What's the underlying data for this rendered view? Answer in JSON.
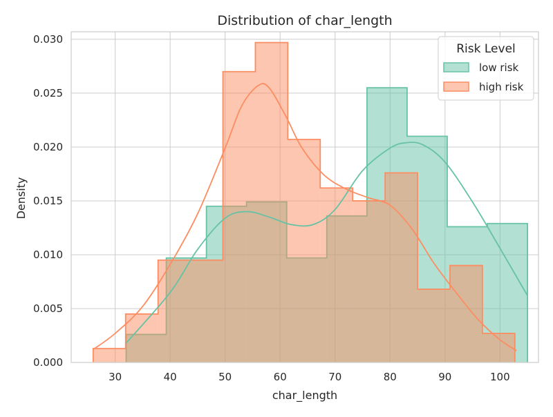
{
  "chart_data": {
    "type": "histogram",
    "title": "Distribution of char_length",
    "xlabel": "char_length",
    "ylabel": "Density",
    "xlim": [
      22,
      107
    ],
    "ylim": [
      0,
      0.0307
    ],
    "x_ticks": [
      30,
      40,
      50,
      60,
      70,
      80,
      90,
      100
    ],
    "x_tick_labels": [
      "30",
      "40",
      "50",
      "60",
      "70",
      "80",
      "90",
      "100"
    ],
    "y_ticks": [
      0.0,
      0.005,
      0.01,
      0.015,
      0.02,
      0.025,
      0.03
    ],
    "y_tick_labels": [
      "0.000",
      "0.005",
      "0.010",
      "0.015",
      "0.020",
      "0.025",
      "0.030"
    ],
    "grid": true,
    "legend": {
      "title": "Risk Level",
      "position": "top-right"
    },
    "series": [
      {
        "name": "low risk",
        "color": "#66c2a5",
        "bin_edges": [
          32,
          39.3,
          46.6,
          53.9,
          61.2,
          68.5,
          75.8,
          83.1,
          90.4,
          97.7,
          105
        ],
        "densities": [
          0.0026,
          0.0097,
          0.0145,
          0.0149,
          0.0097,
          0.0136,
          0.0255,
          0.021,
          0.0126,
          0.0129
        ],
        "kde_x": [
          32,
          40,
          45,
          50,
          54,
          58,
          62,
          66,
          70,
          75,
          80,
          83,
          86,
          90,
          95,
          100,
          105
        ],
        "kde_y": [
          0.0018,
          0.0065,
          0.0105,
          0.0134,
          0.014,
          0.0135,
          0.0128,
          0.0128,
          0.0142,
          0.0178,
          0.0199,
          0.0204,
          0.0202,
          0.0186,
          0.0149,
          0.0106,
          0.0062
        ]
      },
      {
        "name": "high risk",
        "color": "#fc8d62",
        "bin_edges": [
          26,
          31.9,
          37.8,
          43.7,
          49.6,
          55.5,
          61.4,
          67.3,
          73.2,
          79.1,
          85,
          90.9,
          96.8,
          102.7
        ],
        "densities": [
          0.0013,
          0.0045,
          0.0095,
          0.0095,
          0.027,
          0.0297,
          0.0207,
          0.0162,
          0.015,
          0.0176,
          0.0068,
          0.009,
          0.0027
        ],
        "kde_x": [
          26,
          30,
          35,
          40,
          45,
          50,
          53,
          56,
          58,
          61,
          64,
          68,
          72,
          76,
          80,
          84,
          88,
          92,
          96,
          100,
          103
        ],
        "kde_y": [
          0.0012,
          0.0027,
          0.0052,
          0.0091,
          0.0138,
          0.0199,
          0.0238,
          0.0257,
          0.0255,
          0.0229,
          0.0199,
          0.0174,
          0.0161,
          0.0153,
          0.0146,
          0.0124,
          0.0092,
          0.0065,
          0.004,
          0.0021,
          0.0011
        ]
      }
    ]
  }
}
